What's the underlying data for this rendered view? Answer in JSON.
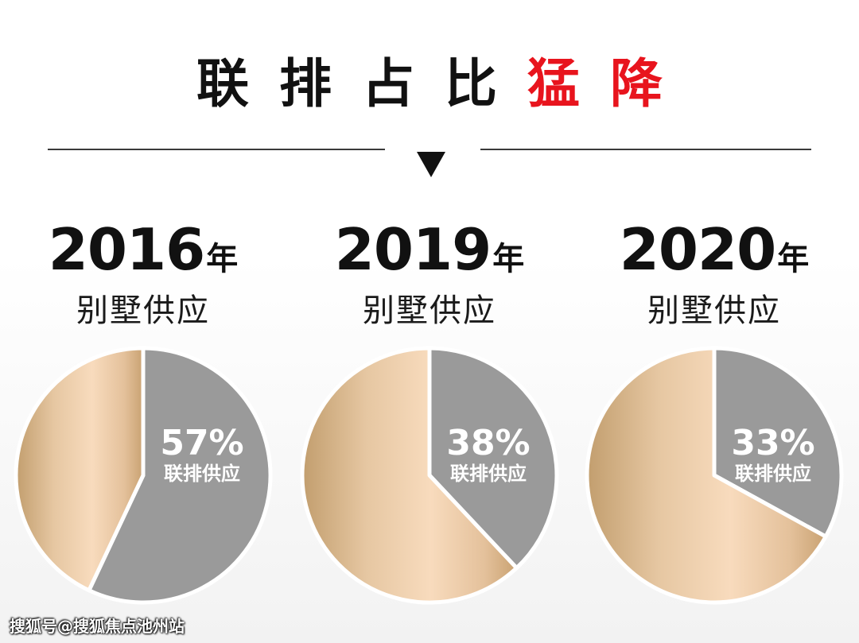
{
  "header": {
    "title_parts": [
      "联",
      "排",
      "占",
      "比"
    ],
    "title_highlight": [
      "猛",
      "降"
    ],
    "highlight_color": "#e8141d"
  },
  "watermark": "搜狐号@搜狐焦点池州站",
  "chart_data": [
    {
      "type": "pie",
      "title": "2016年",
      "year": "2016",
      "year_unit": "年",
      "subtitle": "别墅供应",
      "slices": [
        {
          "name": "联排供应",
          "value": 57,
          "label": "57%",
          "color": "#9a9a9a"
        },
        {
          "name": "",
          "value": 43,
          "color": "#e2bd95"
        }
      ]
    },
    {
      "type": "pie",
      "title": "2019年",
      "year": "2019",
      "year_unit": "年",
      "subtitle": "别墅供应",
      "slices": [
        {
          "name": "联排供应",
          "value": 38,
          "label": "38%",
          "color": "#9a9a9a"
        },
        {
          "name": "",
          "value": 62,
          "color": "#e2bd95"
        }
      ]
    },
    {
      "type": "pie",
      "title": "2020年",
      "year": "2020",
      "year_unit": "年",
      "subtitle": "别墅供应",
      "slices": [
        {
          "name": "联排供应",
          "value": 33,
          "label": "33%",
          "color": "#9a9a9a"
        },
        {
          "name": "",
          "value": 67,
          "color": "#e2bd95"
        }
      ]
    }
  ]
}
